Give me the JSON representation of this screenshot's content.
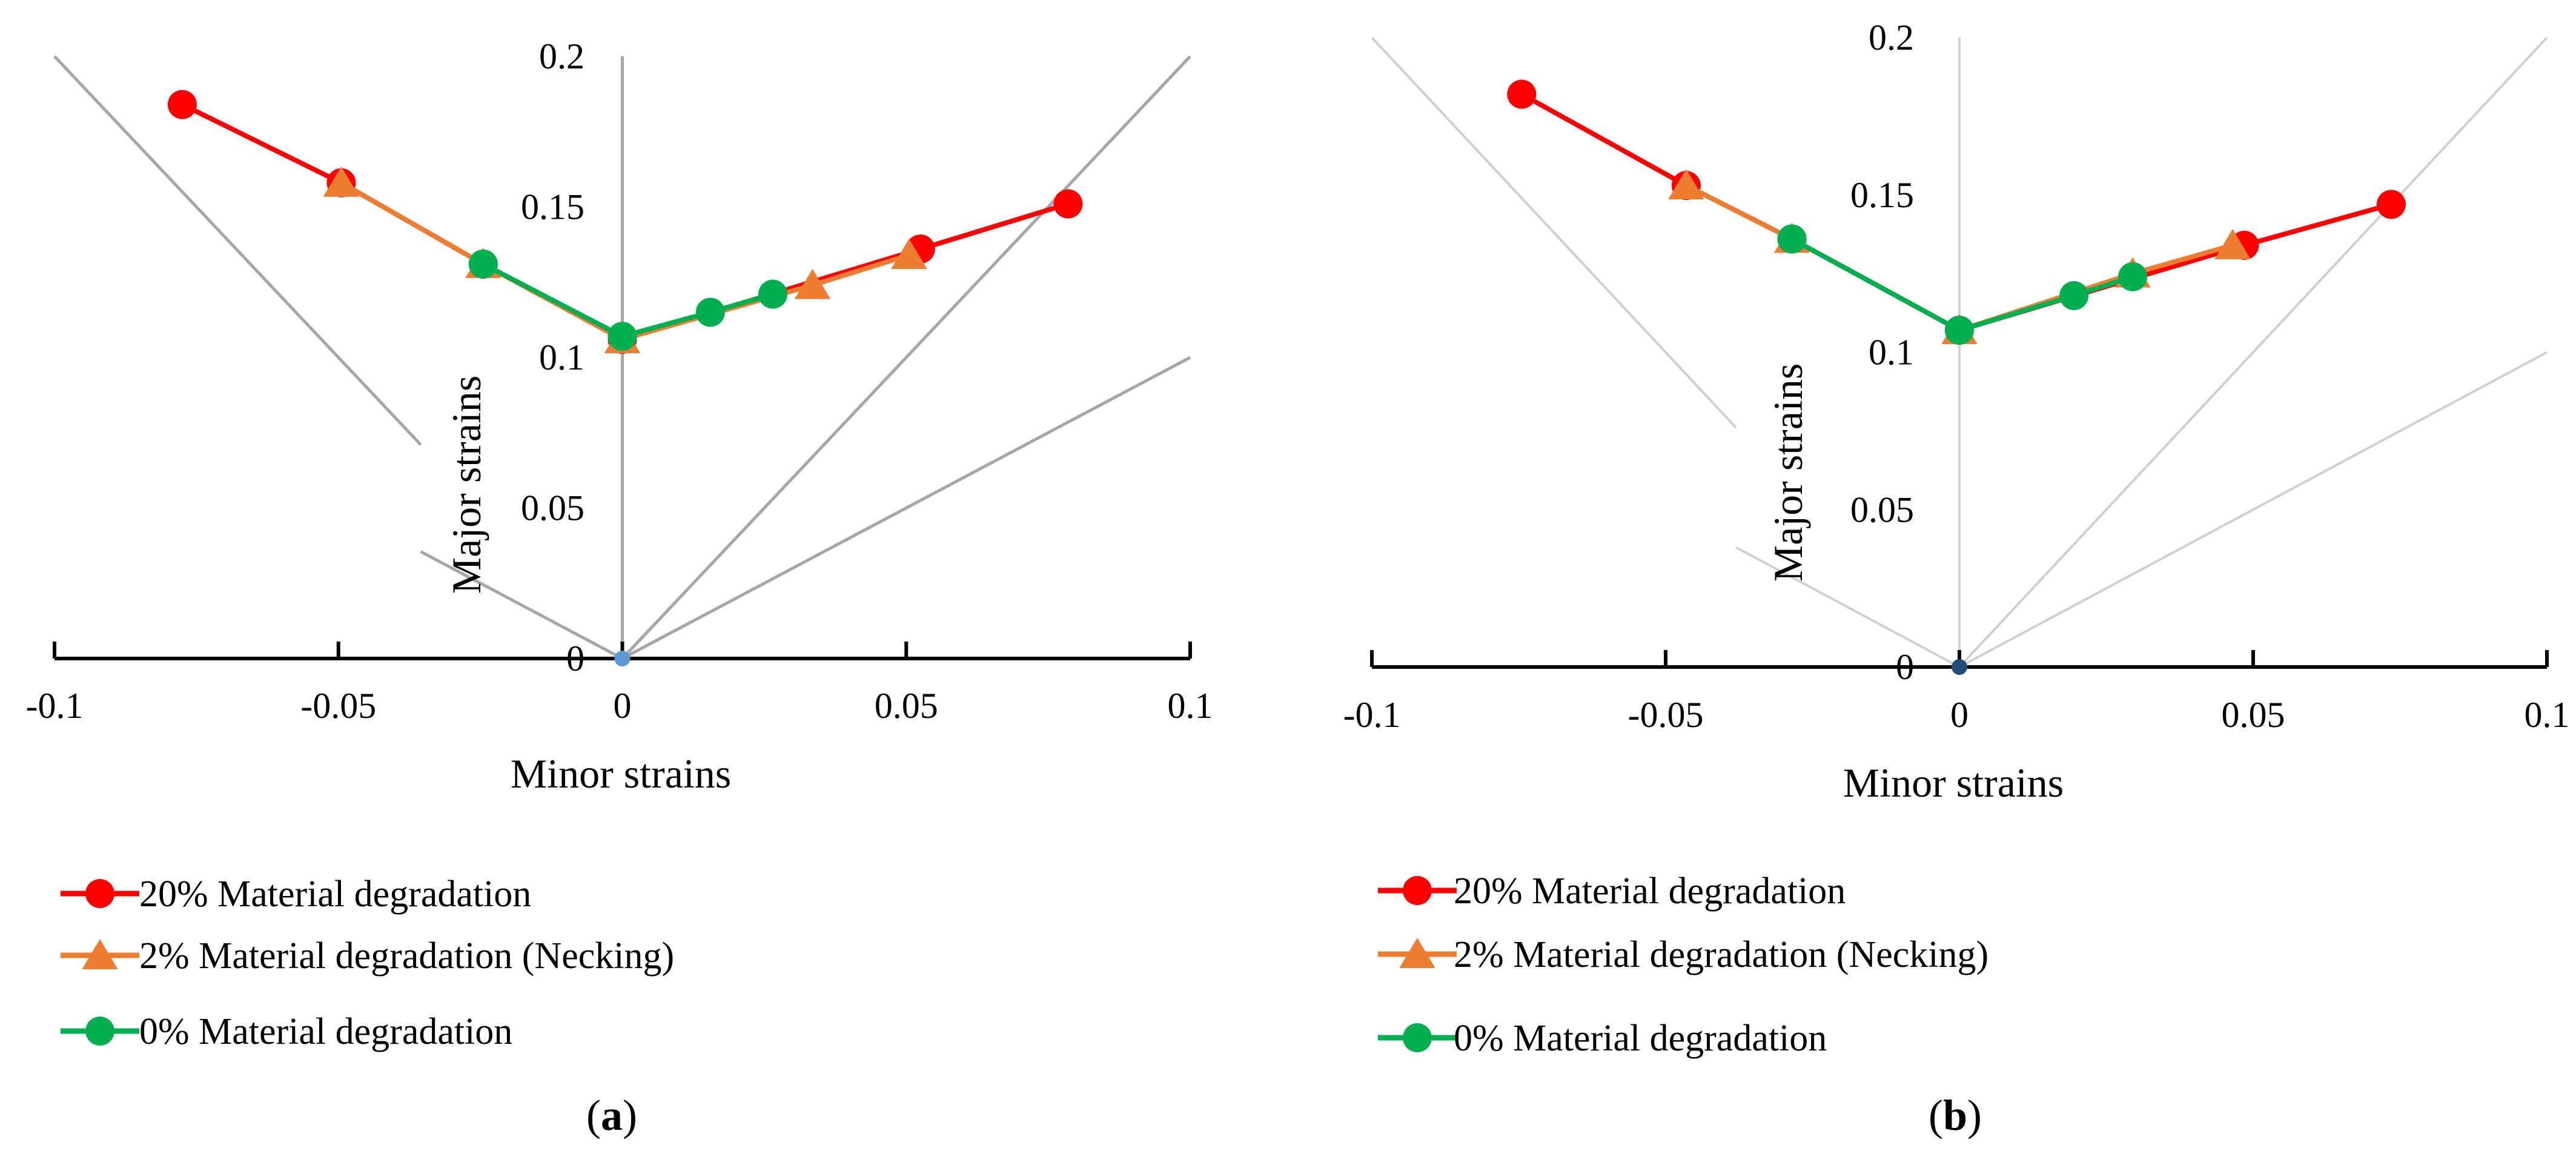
{
  "chart_data": [
    {
      "type": "line",
      "panel_label": "(a)",
      "panel_letter": "a",
      "xlabel": "Minor strains",
      "ylabel": "Major strains",
      "xlim": [
        -0.1,
        0.1
      ],
      "ylim": [
        0,
        0.2
      ],
      "xticks": [
        -0.1,
        -0.05,
        0,
        0.05,
        0.1
      ],
      "xtick_labels": [
        "-0.1",
        "-0.05",
        "0",
        "0.05",
        "0.1"
      ],
      "yticks": [
        0,
        0.05,
        0.1,
        0.15,
        0.2
      ],
      "ytick_labels": [
        "0",
        "0.05",
        "0.1",
        "0.15",
        "0.2"
      ],
      "reference_lines": [
        {
          "name": "uniaxial-compression",
          "x": [
            -0.1,
            -0.0355
          ],
          "y": [
            0.2,
            0.071
          ]
        },
        {
          "name": "uniaxial-tension",
          "x": [
            -0.0355,
            0
          ],
          "y": [
            0.0355,
            0
          ]
        },
        {
          "name": "plane-strain",
          "x": [
            0,
            0
          ],
          "y": [
            0,
            0.2
          ]
        },
        {
          "name": "equibiaxial",
          "x": [
            0,
            0.1
          ],
          "y": [
            0,
            0.2
          ]
        },
        {
          "name": "biaxial",
          "x": [
            0,
            0.1
          ],
          "y": [
            0,
            0.1
          ]
        }
      ],
      "series": [
        {
          "name": "20% Material degradation",
          "color": "#ff0000",
          "marker": "circle",
          "x": [
            -0.0775,
            -0.0495,
            -0.0245,
            0,
            0.0525,
            0.0785
          ],
          "y": [
            0.184,
            0.158,
            0.131,
            0.106,
            0.136,
            0.151
          ]
        },
        {
          "name": "2% Material degradation (Necking)",
          "color": "#ed7d31",
          "marker": "triangle",
          "x": [
            -0.0495,
            -0.0245,
            0,
            0.0335,
            0.0505
          ],
          "y": [
            0.158,
            0.131,
            0.106,
            0.124,
            0.134
          ]
        },
        {
          "name": "0% Material degradation",
          "color": "#00b050",
          "marker": "circle",
          "x": [
            -0.0245,
            0,
            0.0155,
            0.0265
          ],
          "y": [
            0.131,
            0.107,
            0.115,
            0.121
          ]
        }
      ],
      "origin_marker": {
        "x": 0,
        "y": 0,
        "color": "#5b9bd5"
      }
    },
    {
      "type": "line",
      "panel_label": "(b)",
      "panel_letter": "b",
      "xlabel": "Minor strains",
      "ylabel": "Major strains",
      "xlim": [
        -0.1,
        0.1
      ],
      "ylim": [
        0,
        0.2
      ],
      "xticks": [
        -0.1,
        -0.05,
        0,
        0.05,
        0.1
      ],
      "xtick_labels": [
        "-0.1",
        "-0.05",
        "0",
        "0.05",
        "0.1"
      ],
      "yticks": [
        0,
        0.05,
        0.1,
        0.15,
        0.2
      ],
      "ytick_labels": [
        "0",
        "0.05",
        "0.1",
        "0.15",
        "0.2"
      ],
      "reference_lines": [
        {
          "name": "uniaxial-compression",
          "x": [
            -0.1,
            -0.038
          ],
          "y": [
            0.2,
            0.076
          ]
        },
        {
          "name": "uniaxial-tension",
          "x": [
            -0.038,
            0
          ],
          "y": [
            0.038,
            0
          ]
        },
        {
          "name": "plane-strain",
          "x": [
            0,
            0
          ],
          "y": [
            0,
            0.2
          ]
        },
        {
          "name": "equibiaxial",
          "x": [
            0,
            0.1
          ],
          "y": [
            0,
            0.2
          ]
        },
        {
          "name": "biaxial",
          "x": [
            0,
            0.1
          ],
          "y": [
            0,
            0.1
          ]
        }
      ],
      "series": [
        {
          "name": "20% Material degradation",
          "color": "#ff0000",
          "marker": "circle",
          "x": [
            -0.0745,
            -0.0465,
            -0.0285,
            0,
            0.0485,
            0.0735
          ],
          "y": [
            0.182,
            0.153,
            0.136,
            0.107,
            0.134,
            0.147
          ]
        },
        {
          "name": "2% Material degradation (Necking)",
          "color": "#ed7d31",
          "marker": "triangle",
          "x": [
            -0.0465,
            -0.0285,
            0,
            0.0295,
            0.0465
          ],
          "y": [
            0.153,
            0.136,
            0.107,
            0.125,
            0.134
          ]
        },
        {
          "name": "0% Material degradation",
          "color": "#00b050",
          "marker": "circle",
          "x": [
            -0.0285,
            0,
            0.0195,
            0.0295
          ],
          "y": [
            0.136,
            0.107,
            0.118,
            0.124
          ]
        }
      ],
      "origin_marker": {
        "x": 0,
        "y": 0,
        "color": "#1f4e79"
      }
    }
  ]
}
